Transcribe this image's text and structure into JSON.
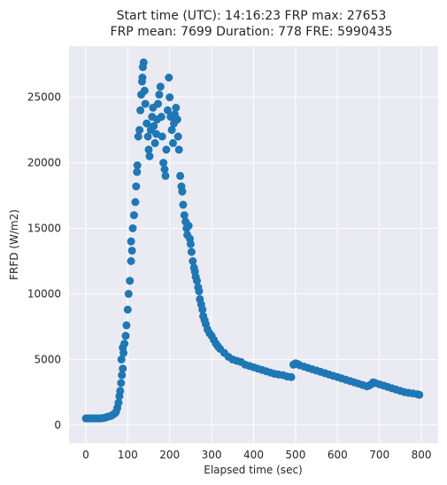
{
  "chart_data": {
    "type": "scatter",
    "title_line1": "Start time (UTC): 14:16:23 FRP max: 27653",
    "title_line2": "FRP mean: 7699 Duration: 778 FRE: 5990435",
    "xlabel": "Elapsed time (sec)",
    "ylabel": "FRFD (W/m2)",
    "xlim": [
      -40,
      840
    ],
    "ylim": [
      -1400,
      28900
    ],
    "xticks": [
      0,
      100,
      200,
      300,
      400,
      500,
      600,
      700,
      800
    ],
    "yticks": [
      0,
      5000,
      10000,
      15000,
      20000,
      25000
    ],
    "grid": true,
    "marker_color": "#1f77b4",
    "background_color": "#eaeaf2",
    "series": [
      {
        "points": [
          [
            0,
            500
          ],
          [
            5,
            500
          ],
          [
            10,
            500
          ],
          [
            15,
            500
          ],
          [
            20,
            500
          ],
          [
            25,
            500
          ],
          [
            30,
            500
          ],
          [
            35,
            500
          ],
          [
            40,
            520
          ],
          [
            45,
            550
          ],
          [
            50,
            600
          ],
          [
            55,
            650
          ],
          [
            60,
            700
          ],
          [
            65,
            800
          ],
          [
            70,
            900
          ],
          [
            72,
            1000
          ],
          [
            75,
            1300
          ],
          [
            78,
            1700
          ],
          [
            80,
            2200
          ],
          [
            82,
            2600
          ],
          [
            84,
            3200
          ],
          [
            86,
            3800
          ],
          [
            88,
            4300
          ],
          [
            85,
            5000
          ],
          [
            90,
            5500
          ],
          [
            88,
            5900
          ],
          [
            92,
            6200
          ],
          [
            95,
            6800
          ],
          [
            97,
            7600
          ],
          [
            100,
            8800
          ],
          [
            102,
            10000
          ],
          [
            105,
            11000
          ],
          [
            108,
            12500
          ],
          [
            110,
            13300
          ],
          [
            108,
            14000
          ],
          [
            112,
            15000
          ],
          [
            115,
            16000
          ],
          [
            118,
            17000
          ],
          [
            120,
            18200
          ],
          [
            122,
            19300
          ],
          [
            123,
            19800
          ],
          [
            125,
            22000
          ],
          [
            128,
            22500
          ],
          [
            130,
            24000
          ],
          [
            132,
            25200
          ],
          [
            134,
            26200
          ],
          [
            136,
            27300
          ],
          [
            138,
            27653
          ],
          [
            135,
            26500
          ],
          [
            140,
            25500
          ],
          [
            142,
            24500
          ],
          [
            145,
            23000
          ],
          [
            148,
            22000
          ],
          [
            150,
            21000
          ],
          [
            152,
            20500
          ],
          [
            155,
            22500
          ],
          [
            158,
            23500
          ],
          [
            160,
            24200
          ],
          [
            162,
            22800
          ],
          [
            165,
            21500
          ],
          [
            168,
            22200
          ],
          [
            170,
            23300
          ],
          [
            172,
            24500
          ],
          [
            175,
            25200
          ],
          [
            178,
            25800
          ],
          [
            180,
            23500
          ],
          [
            182,
            22000
          ],
          [
            185,
            20000
          ],
          [
            188,
            19500
          ],
          [
            190,
            19000
          ],
          [
            192,
            21000
          ],
          [
            195,
            24000
          ],
          [
            198,
            26500
          ],
          [
            200,
            25000
          ],
          [
            202,
            23500
          ],
          [
            205,
            22500
          ],
          [
            208,
            21500
          ],
          [
            210,
            23000
          ],
          [
            212,
            23700
          ],
          [
            215,
            24200
          ],
          [
            218,
            23300
          ],
          [
            220,
            22000
          ],
          [
            222,
            21000
          ],
          [
            225,
            19000
          ],
          [
            228,
            18200
          ],
          [
            230,
            17800
          ],
          [
            232,
            16800
          ],
          [
            235,
            16000
          ],
          [
            238,
            15500
          ],
          [
            240,
            15000
          ],
          [
            242,
            14500
          ],
          [
            245,
            15200
          ],
          [
            248,
            14200
          ],
          [
            250,
            13800
          ],
          [
            252,
            13200
          ],
          [
            255,
            12500
          ],
          [
            258,
            12000
          ],
          [
            260,
            11700
          ],
          [
            262,
            11300
          ],
          [
            265,
            11000
          ],
          [
            268,
            10500
          ],
          [
            270,
            10200
          ],
          [
            272,
            9600
          ],
          [
            275,
            9200
          ],
          [
            278,
            8800
          ],
          [
            280,
            8300
          ],
          [
            283,
            8000
          ],
          [
            286,
            7700
          ],
          [
            290,
            7300
          ],
          [
            295,
            7000
          ],
          [
            300,
            6800
          ],
          [
            305,
            6500
          ],
          [
            310,
            6200
          ],
          [
            315,
            6000
          ],
          [
            320,
            5800
          ],
          [
            330,
            5500
          ],
          [
            340,
            5200
          ],
          [
            350,
            5000
          ],
          [
            360,
            4900
          ],
          [
            370,
            4800
          ],
          [
            380,
            4600
          ],
          [
            390,
            4500
          ],
          [
            400,
            4400
          ],
          [
            410,
            4300
          ],
          [
            420,
            4200
          ],
          [
            430,
            4100
          ],
          [
            440,
            4000
          ],
          [
            450,
            3900
          ],
          [
            460,
            3850
          ],
          [
            470,
            3800
          ],
          [
            480,
            3700
          ],
          [
            490,
            3650
          ],
          [
            495,
            4600
          ],
          [
            500,
            4700
          ],
          [
            505,
            4650
          ],
          [
            510,
            4550
          ],
          [
            520,
            4450
          ],
          [
            530,
            4350
          ],
          [
            540,
            4250
          ],
          [
            550,
            4150
          ],
          [
            560,
            4050
          ],
          [
            570,
            3950
          ],
          [
            580,
            3850
          ],
          [
            590,
            3750
          ],
          [
            600,
            3650
          ],
          [
            610,
            3550
          ],
          [
            620,
            3450
          ],
          [
            630,
            3350
          ],
          [
            640,
            3250
          ],
          [
            650,
            3150
          ],
          [
            660,
            3050
          ],
          [
            670,
            2950
          ],
          [
            675,
            3000
          ],
          [
            680,
            3100
          ],
          [
            685,
            3250
          ],
          [
            690,
            3200
          ],
          [
            700,
            3100
          ],
          [
            710,
            3000
          ],
          [
            720,
            2900
          ],
          [
            730,
            2800
          ],
          [
            740,
            2700
          ],
          [
            750,
            2600
          ],
          [
            760,
            2500
          ],
          [
            770,
            2450
          ],
          [
            780,
            2400
          ],
          [
            790,
            2350
          ],
          [
            795,
            2300
          ]
        ]
      }
    ]
  }
}
